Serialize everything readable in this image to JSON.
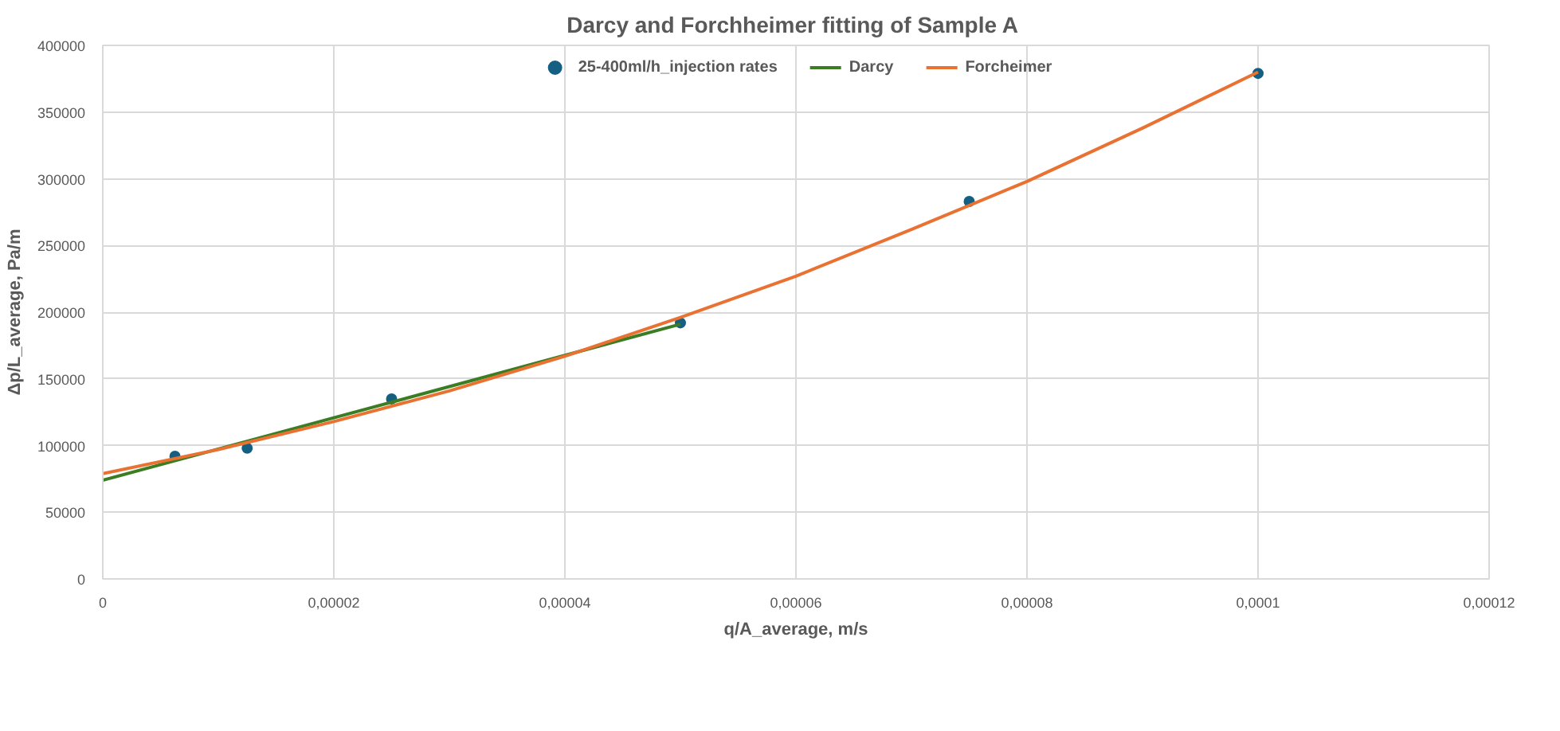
{
  "chart_data": {
    "type": "scatter",
    "title": "Darcy and Forchheimer fitting  of Sample A",
    "xlabel": "q/A_average, m/s",
    "ylabel": "Δp/L_average, Pa/m",
    "series": [
      {
        "name": "25-400ml/h_injection rates",
        "color": "#156082",
        "marker": "circle",
        "x": [
          6.25e-06,
          1.25e-05,
          2.5e-05,
          5e-05,
          7.5e-05,
          0.0001
        ],
        "values": [
          92000,
          98000,
          135000,
          192000,
          283000,
          379000
        ]
      },
      {
        "name": "Darcy",
        "type": "line",
        "color": "#3a7d22",
        "x": [
          0,
          5e-05
        ],
        "values": [
          74000,
          191000
        ]
      },
      {
        "name": "Forcheimer",
        "type": "line",
        "color": "#e97132",
        "x": [
          0,
          1e-05,
          2e-05,
          3e-05,
          4e-05,
          5e-05,
          6e-05,
          7e-05,
          8e-05,
          9e-05,
          0.0001
        ],
        "values": [
          79000,
          97000,
          118000,
          141000,
          167000,
          196000,
          227000,
          262000,
          298000,
          338000,
          380000
        ]
      }
    ],
    "xlim": [
      0,
      0.00012
    ],
    "ylim": [
      0,
      400000
    ],
    "xticks": [
      0,
      {
        "value": 2e-05,
        "label": "0,00002"
      },
      {
        "value": 4e-05,
        "label": "0,00004"
      },
      {
        "value": 6e-05,
        "label": "0,00006"
      },
      {
        "value": 8e-05,
        "label": "0,00008"
      },
      {
        "value": 0.0001,
        "label": "0,0001"
      },
      {
        "value": 0.00012,
        "label": "0,00012"
      }
    ],
    "yticks": [
      0,
      50000,
      100000,
      150000,
      200000,
      250000,
      300000,
      350000,
      400000
    ],
    "grid": true,
    "legend": "top",
    "line_style": "solid"
  }
}
